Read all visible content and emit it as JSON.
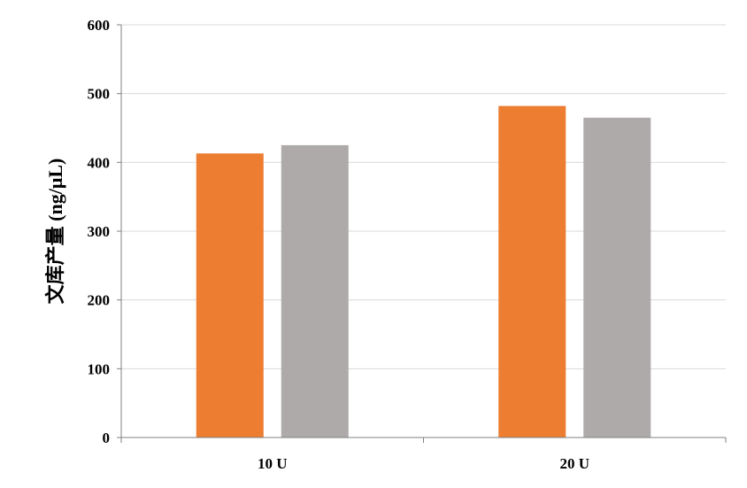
{
  "chart_data": {
    "type": "bar",
    "title": "",
    "xlabel": "",
    "ylabel": "文库产量 (ng/μL)",
    "categories": [
      "10 U",
      "20 U"
    ],
    "series": [
      {
        "color": "#ED7D31",
        "values": [
          413,
          482
        ]
      },
      {
        "color": "#AEAAAA",
        "values": [
          425,
          465
        ]
      }
    ],
    "ylim": [
      0,
      600
    ],
    "yticks": [
      0,
      100,
      200,
      300,
      400,
      500,
      600
    ],
    "grid": true,
    "legend": "none"
  }
}
